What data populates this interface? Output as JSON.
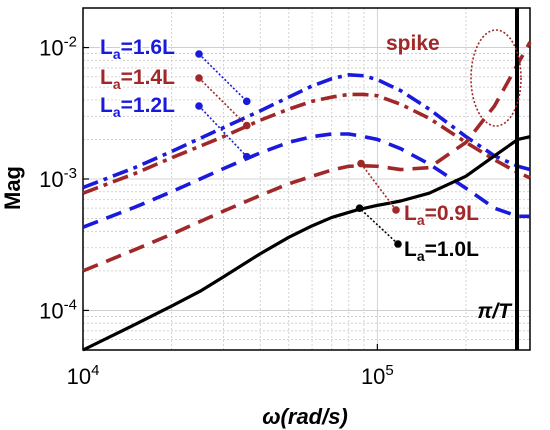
{
  "chart_data": {
    "type": "line",
    "title": "",
    "xlabel": "ω(rad/s)",
    "ylabel": "Mag",
    "xscale": "log",
    "yscale": "log",
    "xlim": [
      10000,
      330000
    ],
    "ylim": [
      5e-05,
      0.02
    ],
    "x_ticks": [
      {
        "value": 10000,
        "base": "10",
        "exp": "4"
      },
      {
        "value": 100000,
        "base": "10",
        "exp": "5"
      }
    ],
    "y_ticks": [
      {
        "value": 0.0001,
        "base": "10",
        "exp": "-4"
      },
      {
        "value": 0.001,
        "base": "10",
        "exp": "-3"
      },
      {
        "value": 0.01,
        "base": "10",
        "exp": "-2"
      }
    ],
    "grid": true,
    "vertical_marker": {
      "x": 330000,
      "label": "π/T"
    },
    "series": [
      {
        "name": "Lₐ=1.6L",
        "color": "#1a1adc",
        "style": "dashdot",
        "x": [
          10000,
          15000,
          20000,
          30000,
          40000,
          50000,
          60000,
          70000,
          80000,
          90000,
          100000,
          120000,
          150000,
          200000,
          250000,
          300000,
          330000
        ],
        "y": [
          0.00086,
          0.00122,
          0.00162,
          0.00246,
          0.0033,
          0.0042,
          0.0051,
          0.0058,
          0.0062,
          0.0061,
          0.0057,
          0.0047,
          0.0034,
          0.0021,
          0.0015,
          0.00125,
          0.00118
        ]
      },
      {
        "name": "Lₐ=1.4L",
        "color": "#a02828",
        "style": "dashdot",
        "x": [
          10000,
          15000,
          20000,
          30000,
          40000,
          50000,
          60000,
          70000,
          80000,
          90000,
          100000,
          120000,
          150000,
          200000,
          250000,
          300000,
          330000
        ],
        "y": [
          0.00078,
          0.0011,
          0.00145,
          0.0021,
          0.0028,
          0.0034,
          0.0039,
          0.0042,
          0.0044,
          0.0044,
          0.0043,
          0.0037,
          0.0029,
          0.0019,
          0.0014,
          0.00112,
          0.00102
        ]
      },
      {
        "name": "Lₐ=1.2L",
        "color": "#1a1adc",
        "style": "dashed",
        "x": [
          10000,
          15000,
          20000,
          30000,
          40000,
          50000,
          60000,
          70000,
          80000,
          90000,
          100000,
          120000,
          150000,
          200000,
          250000,
          300000,
          330000
        ],
        "y": [
          0.00043,
          0.00061,
          0.0008,
          0.0012,
          0.00158,
          0.0019,
          0.0021,
          0.0022,
          0.0022,
          0.0021,
          0.002,
          0.0017,
          0.0013,
          0.00085,
          0.0006,
          0.00052,
          0.00052
        ]
      },
      {
        "name": "Lₐ=0.9L",
        "color": "#a02828",
        "style": "dashed",
        "x": [
          10000,
          15000,
          20000,
          30000,
          40000,
          50000,
          60000,
          70000,
          80000,
          90000,
          100000,
          120000,
          150000,
          200000,
          250000,
          300000,
          330000
        ],
        "y": [
          0.0002,
          0.00029,
          0.00038,
          0.00057,
          0.00075,
          0.00092,
          0.00105,
          0.00117,
          0.00125,
          0.00126,
          0.00125,
          0.00118,
          0.00122,
          0.0019,
          0.0036,
          0.0075,
          0.011
        ]
      },
      {
        "name": "Lₐ=1.0L",
        "color": "#000000",
        "style": "solid",
        "x": [
          10000,
          15000,
          20000,
          25000,
          30000,
          40000,
          50000,
          60000,
          70000,
          85000,
          100000,
          120000,
          150000,
          200000,
          250000,
          300000,
          330000
        ],
        "y": [
          5e-05,
          7.8e-05,
          0.000108,
          0.00014,
          0.00018,
          0.00027,
          0.00036,
          0.00044,
          0.00051,
          0.00058,
          0.00063,
          0.00068,
          0.00078,
          0.00105,
          0.0015,
          0.002,
          0.0021
        ]
      }
    ],
    "annotations": [
      {
        "id": "a16",
        "main": "L",
        "sub": "a",
        "rest": "=1.6L",
        "color": "#1a1adc",
        "point": {
          "x": 36000,
          "y": 0.0039
        }
      },
      {
        "id": "a14",
        "main": "L",
        "sub": "a",
        "rest": "=1.4L",
        "color": "#a02828",
        "point": {
          "x": 36000,
          "y": 0.00255
        }
      },
      {
        "id": "a12",
        "main": "L",
        "sub": "a",
        "rest": "=1.2L",
        "color": "#1a1adc",
        "point": {
          "x": 36000,
          "y": 0.00148
        }
      },
      {
        "id": "a09",
        "main": "L",
        "sub": "a",
        "rest": "=0.9L",
        "color": "#a02828",
        "point": {
          "x": 88000,
          "y": 0.00131
        }
      },
      {
        "id": "a10",
        "main": "L",
        "sub": "a",
        "rest": "=1.0L",
        "color": "#000000",
        "point": {
          "x": 87000,
          "y": 0.0006
        }
      }
    ],
    "spike_label": {
      "text": "spike",
      "color": "#a02828"
    }
  }
}
